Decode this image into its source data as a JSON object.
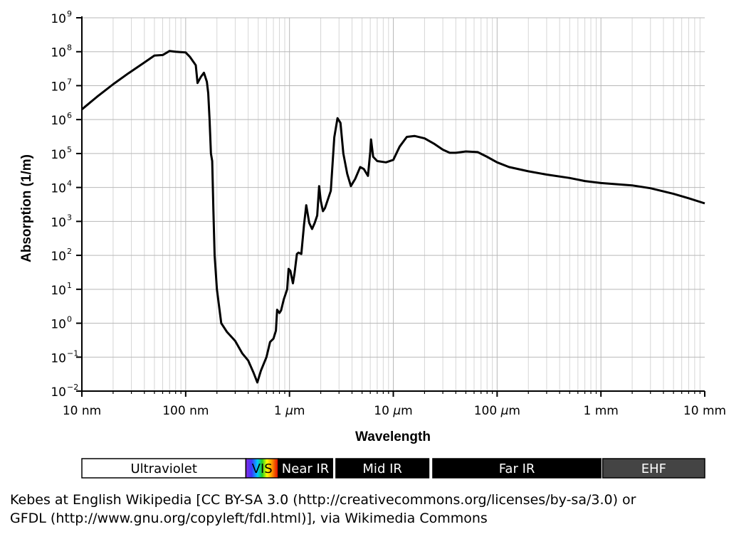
{
  "chart_data": {
    "type": "line",
    "xlabel": "Wavelength",
    "ylabel": "Absorption (1/m)",
    "x_scale": "log",
    "y_scale": "log",
    "xlim_m": [
      1e-08,
      0.01
    ],
    "ylim": [
      0.01,
      1000000000
    ],
    "grid": true,
    "x_ticks": [
      {
        "value_m": 1e-08,
        "label": "10 nm"
      },
      {
        "value_m": 1e-07,
        "label": "100 nm"
      },
      {
        "value_m": 1e-06,
        "label_pre": "1 ",
        "label_unit": "μ",
        "label_post": "m"
      },
      {
        "value_m": 1e-05,
        "label_pre": "10 ",
        "label_unit": "μ",
        "label_post": "m"
      },
      {
        "value_m": 0.0001,
        "label_pre": "100 ",
        "label_unit": "μ",
        "label_post": "m"
      },
      {
        "value_m": 0.001,
        "label": "1 mm"
      },
      {
        "value_m": 0.01,
        "label": "10 mm"
      }
    ],
    "y_ticks": [
      {
        "base": "10",
        "exp": "−2",
        "value": 0.01
      },
      {
        "base": "10",
        "exp": "−1",
        "value": 0.1
      },
      {
        "base": "10",
        "exp": "0",
        "value": 1
      },
      {
        "base": "10",
        "exp": "1",
        "value": 10
      },
      {
        "base": "10",
        "exp": "2",
        "value": 100
      },
      {
        "base": "10",
        "exp": "3",
        "value": 1000
      },
      {
        "base": "10",
        "exp": "4",
        "value": 10000
      },
      {
        "base": "10",
        "exp": "5",
        "value": 100000
      },
      {
        "base": "10",
        "exp": "6",
        "value": 1000000
      },
      {
        "base": "10",
        "exp": "7",
        "value": 10000000
      },
      {
        "base": "10",
        "exp": "8",
        "value": 100000000
      },
      {
        "base": "10",
        "exp": "9",
        "value": 1000000000
      }
    ],
    "series": [
      {
        "color": "#000000",
        "points": [
          [
            1e-08,
            2000000.0
          ],
          [
            1.4e-08,
            4700000.0
          ],
          [
            2e-08,
            11000000.0
          ],
          [
            2.8e-08,
            23000000.0
          ],
          [
            4e-08,
            48000000.0
          ],
          [
            5e-08,
            77000000.0
          ],
          [
            6e-08,
            80000000.0
          ],
          [
            7e-08,
            105000000.0
          ],
          [
            8e-08,
            100000000.0
          ],
          [
            1e-07,
            95000000.0
          ],
          [
            1.1e-07,
            70000000.0
          ],
          [
            1.25e-07,
            40000000.0
          ],
          [
            1.3e-07,
            12000000.0
          ],
          [
            1.4e-07,
            18000000.0
          ],
          [
            1.5e-07,
            24000000.0
          ],
          [
            1.6e-07,
            13000000.0
          ],
          [
            1.65e-07,
            6000000.0
          ],
          [
            1.7e-07,
            1000000.0
          ],
          [
            1.75e-07,
            100000.0
          ],
          [
            1.8e-07,
            60000.0
          ],
          [
            1.85e-07,
            2000.0
          ],
          [
            1.9e-07,
            100.0
          ],
          [
            2e-07,
            10
          ],
          [
            2.2e-07,
            1.0
          ],
          [
            2.5e-07,
            0.55
          ],
          [
            3e-07,
            0.3
          ],
          [
            3.5e-07,
            0.13
          ],
          [
            4e-07,
            0.08
          ],
          [
            4.5e-07,
            0.035
          ],
          [
            4.9e-07,
            0.018
          ],
          [
            5.3e-07,
            0.04
          ],
          [
            6e-07,
            0.1
          ],
          [
            6.5e-07,
            0.28
          ],
          [
            7e-07,
            0.35
          ],
          [
            7.4e-07,
            0.6
          ],
          [
            7.6e-07,
            2.5
          ],
          [
            8e-07,
            2.0
          ],
          [
            8.3e-07,
            2.4
          ],
          [
            8.8e-07,
            5.0
          ],
          [
            9.5e-07,
            10
          ],
          [
            9.8e-07,
            40
          ],
          [
            1.02e-06,
            35
          ],
          [
            1.08e-06,
            15
          ],
          [
            1.12e-06,
            30
          ],
          [
            1.18e-06,
            110
          ],
          [
            1.22e-06,
            120
          ],
          [
            1.3e-06,
            110
          ],
          [
            1.38e-06,
            800
          ],
          [
            1.45e-06,
            3000
          ],
          [
            1.55e-06,
            900
          ],
          [
            1.65e-06,
            600
          ],
          [
            1.75e-06,
            900
          ],
          [
            1.85e-06,
            1500
          ],
          [
            1.93e-06,
            11000
          ],
          [
            2e-06,
            4000
          ],
          [
            2.1e-06,
            2000
          ],
          [
            2.2e-06,
            2500
          ],
          [
            2.5e-06,
            8000
          ],
          [
            2.7e-06,
            300000.0
          ],
          [
            2.9e-06,
            1100000.0
          ],
          [
            3.1e-06,
            800000.0
          ],
          [
            3.3e-06,
            100000.0
          ],
          [
            3.6e-06,
            25000.0
          ],
          [
            3.9e-06,
            11000.0
          ],
          [
            4.3e-06,
            18000.0
          ],
          [
            4.8e-06,
            40000.0
          ],
          [
            5.2e-06,
            35000.0
          ],
          [
            5.7e-06,
            22000.0
          ],
          [
            6e-06,
            110000.0
          ],
          [
            6.1e-06,
            260000.0
          ],
          [
            6.4e-06,
            80000.0
          ],
          [
            7e-06,
            60000.0
          ],
          [
            8.5e-06,
            55000.0
          ],
          [
            1e-05,
            65000.0
          ],
          [
            1.15e-05,
            160000.0
          ],
          [
            1.35e-05,
            310000.0
          ],
          [
            1.6e-05,
            330000.0
          ],
          [
            2e-05,
            280000.0
          ],
          [
            2.5e-05,
            190000.0
          ],
          [
            3e-05,
            130000.0
          ],
          [
            3.5e-05,
            105000.0
          ],
          [
            4e-05,
            105000.0
          ],
          [
            5e-05,
            115000.0
          ],
          [
            6.5e-05,
            110000.0
          ],
          [
            8e-05,
            80000.0
          ],
          [
            0.0001,
            55000.0
          ],
          [
            0.00013,
            40000.0
          ],
          [
            0.0002,
            30000.0
          ],
          [
            0.0003,
            24000.0
          ],
          [
            0.0005,
            19000.0
          ],
          [
            0.0007,
            15500.0
          ],
          [
            0.001,
            13500.0
          ],
          [
            0.002,
            11500.0
          ],
          [
            0.003,
            9500.0
          ],
          [
            0.005,
            6500.0
          ],
          [
            0.007,
            4800.0
          ],
          [
            0.01,
            3400.0
          ]
        ]
      }
    ]
  },
  "bands": [
    {
      "label": "Ultraviolet",
      "from_m": 1e-08,
      "to_m": 3.8e-07,
      "fill": "#ffffff",
      "text": "#000000"
    },
    {
      "label": "VIS",
      "from_m": 3.8e-07,
      "to_m": 7.8e-07,
      "fill": "spectrum",
      "text": "#000000"
    },
    {
      "label": "Near IR",
      "from_m": 7.8e-07,
      "to_m": 2.6e-06,
      "fill": "#000000",
      "text": "#ffffff"
    },
    {
      "label": "Mid IR",
      "from_m": 2.8e-06,
      "to_m": 2.2e-05,
      "fill": "#000000",
      "text": "#ffffff"
    },
    {
      "label": "Far IR",
      "from_m": 2.4e-05,
      "to_m": 0.001,
      "fill": "#000000",
      "text": "#ffffff"
    },
    {
      "label": "EHF",
      "from_m": 0.00104,
      "to_m": 0.01,
      "fill": "#444444",
      "text": "#ffffff"
    }
  ],
  "credit": {
    "line1": "Kebes at English Wikipedia [CC BY-SA 3.0 (http://creativecommons.org/licenses/by-sa/3.0) or",
    "line2": "GFDL (http://www.gnu.org/copyleft/fdl.html)], via Wikimedia Commons"
  }
}
